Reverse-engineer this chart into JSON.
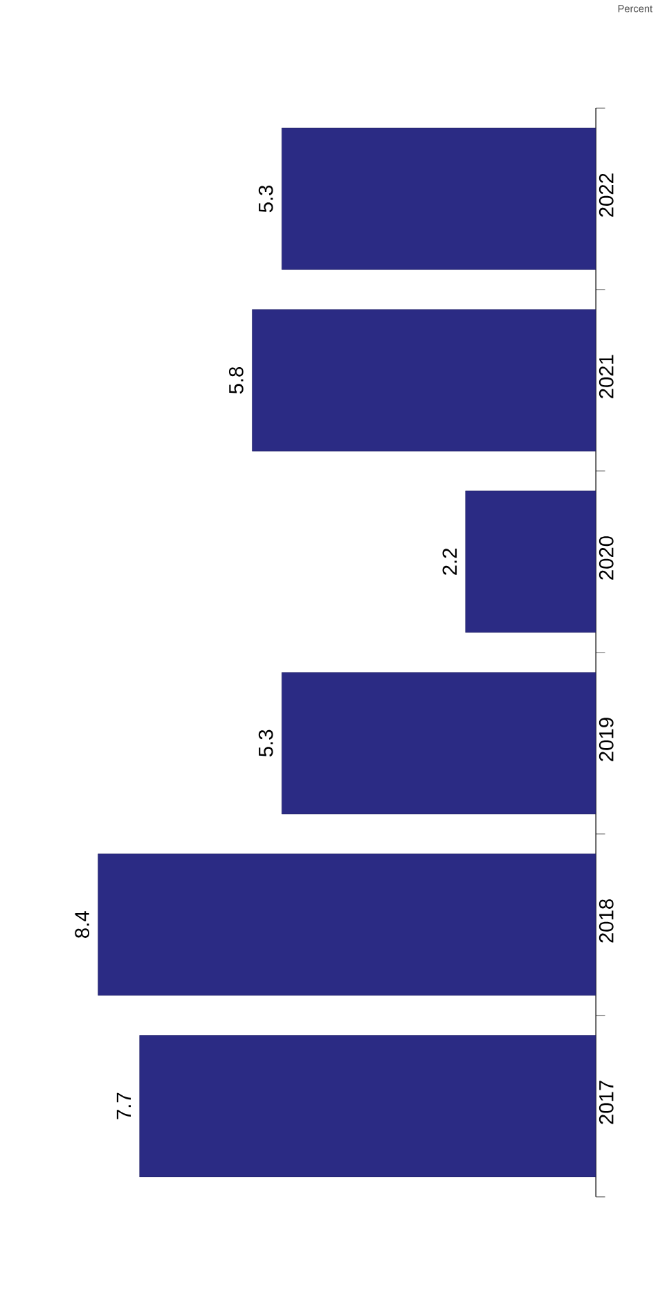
{
  "chart_data": {
    "type": "bar",
    "orientation": "horizontal",
    "annotations": [
      "Percent"
    ],
    "categories": [
      "2022",
      "2021",
      "2020",
      "2019",
      "2018",
      "2017"
    ],
    "values": [
      5.3,
      5.8,
      2.2,
      5.3,
      8.4,
      7.7
    ],
    "color": "#2b2b84",
    "data_labels": true
  }
}
